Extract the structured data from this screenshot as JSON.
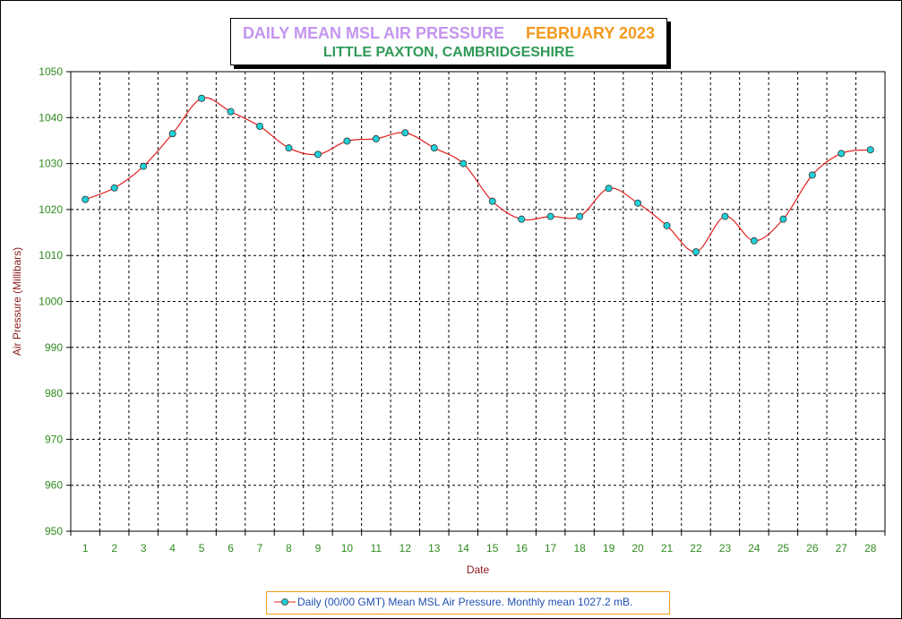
{
  "title": {
    "main": "DAILY MEAN MSL AIR PRESSURE",
    "month": "FEBRUARY 2023",
    "subtitle": "LITTLE PAXTON, CAMBRIDGESHIRE"
  },
  "colors": {
    "title_main": "#c495f0",
    "title_month": "#f39a1e",
    "subtitle": "#2f9a57",
    "tick_labels": "#2f8a1e",
    "axis_titles": "#8b1a1a",
    "line": "#e0201e",
    "marker_fill": "#20d0d8",
    "legend_text": "#1f4fb4",
    "legend_border": "#f39a1e"
  },
  "chart_data": {
    "type": "line",
    "xlabel": "Date",
    "ylabel": "Air Pressure (Millibars)",
    "ylim": [
      950,
      1050
    ],
    "yticks": [
      950,
      960,
      970,
      980,
      990,
      1000,
      1010,
      1020,
      1030,
      1040,
      1050
    ],
    "x": [
      1,
      2,
      3,
      4,
      5,
      6,
      7,
      8,
      9,
      10,
      11,
      12,
      13,
      14,
      15,
      16,
      17,
      18,
      19,
      20,
      21,
      22,
      23,
      24,
      25,
      26,
      27,
      28
    ],
    "series": [
      {
        "name": "Daily (00/00 GMT) Mean MSL Air Pressure. Monthly mean 1027.2 mB.",
        "values": [
          1022.2,
          1024.7,
          1029.4,
          1036.5,
          1044.2,
          1041.3,
          1038.1,
          1033.4,
          1032.0,
          1034.9,
          1035.4,
          1036.7,
          1033.4,
          1030.0,
          1021.8,
          1017.9,
          1018.5,
          1018.5,
          1024.6,
          1021.4,
          1016.5,
          1010.8,
          1018.5,
          1013.2,
          1017.9,
          1027.5,
          1032.2,
          1033.0
        ]
      }
    ],
    "grid": true,
    "legend_position": "bottom-center"
  }
}
